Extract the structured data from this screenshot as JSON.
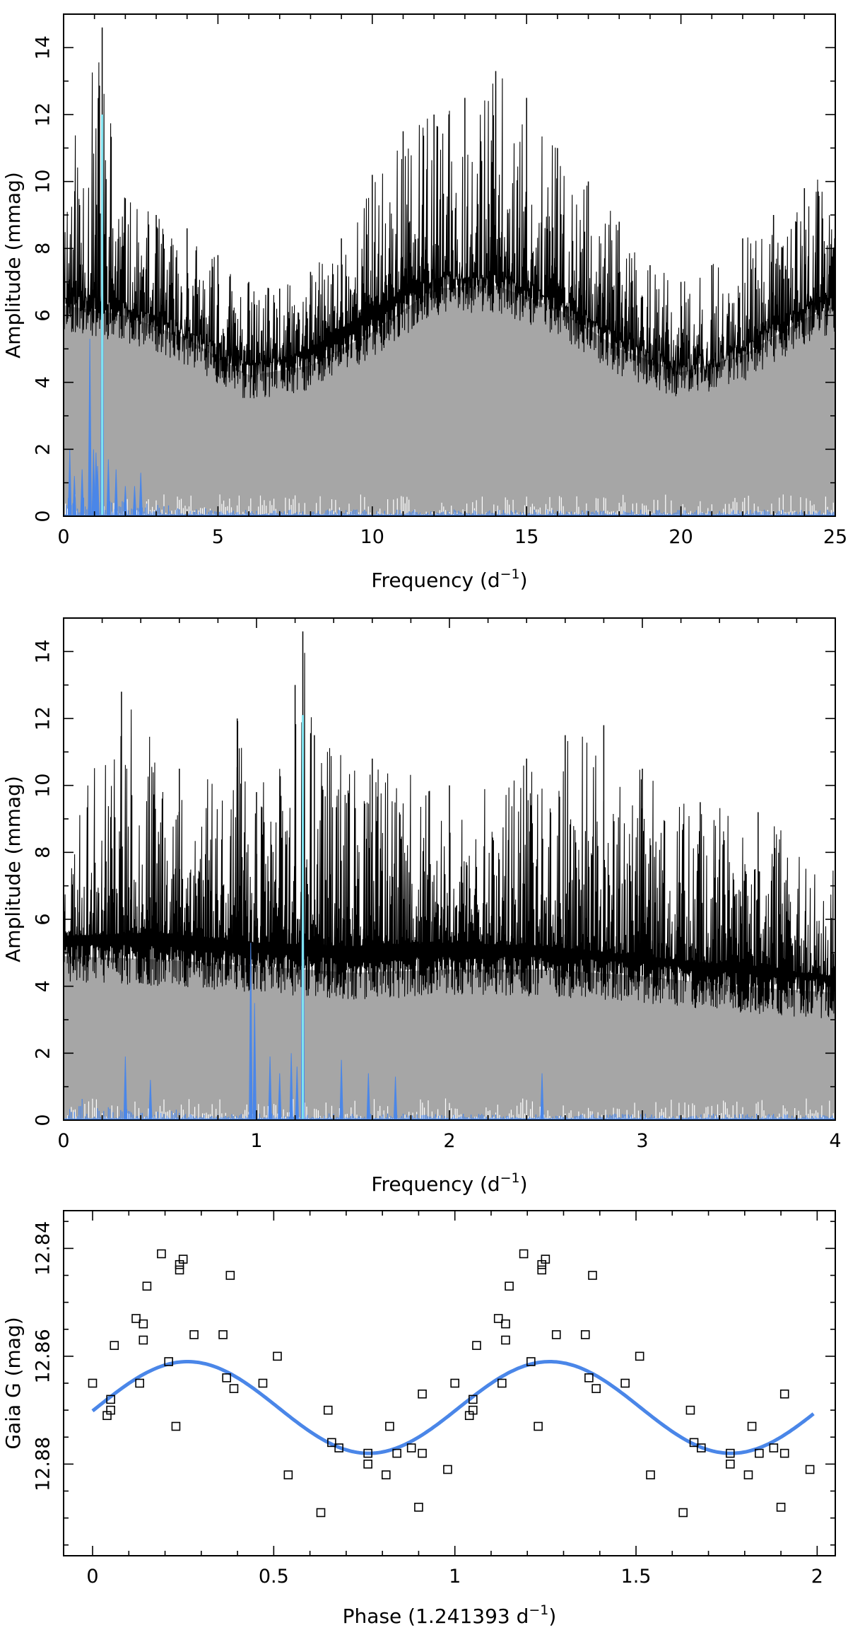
{
  "chart_data": [
    {
      "type": "line",
      "xlabel": "Frequency (d",
      "xlabel_sup": "−1",
      "xlabel_close": ")",
      "ylabel": "Amplitude (mmag)",
      "xlim": [
        0,
        25
      ],
      "ylim": [
        0,
        15
      ],
      "xticks": [
        0,
        5,
        10,
        15,
        20,
        25
      ],
      "yticks": [
        0,
        2,
        4,
        6,
        8,
        10,
        12,
        14
      ],
      "xtick_labels": [
        "0",
        "5",
        "10",
        "15",
        "20",
        "25"
      ],
      "ytick_labels": [
        "0",
        "2",
        "4",
        "6",
        "8",
        "10",
        "12",
        "14"
      ],
      "colors": {
        "upper": "#000000",
        "window": "#a6a6a6",
        "residual": "#ffffff",
        "blue": "#4a86e8",
        "cyan": "#7fe3f0"
      },
      "series": [
        {
          "role": "upper-envelope",
          "x": [
            0,
            1.25,
            2,
            3,
            4,
            5,
            6,
            7,
            8,
            9,
            10,
            11,
            12,
            13,
            14,
            15,
            16,
            17,
            18,
            19,
            20,
            21,
            22,
            23,
            24,
            25
          ],
          "y": [
            10.5,
            14.6,
            9.5,
            9.0,
            8.6,
            7.8,
            7.0,
            6.8,
            7.3,
            8.3,
            10.2,
            11.5,
            12.0,
            12.5,
            13.3,
            12.5,
            11.0,
            10.0,
            8.8,
            7.5,
            7.0,
            7.5,
            8.3,
            9.0,
            9.8,
            10.4
          ]
        },
        {
          "role": "lower-envelope",
          "x": [
            0,
            1,
            2,
            3,
            4,
            5,
            6,
            7,
            8,
            9,
            10,
            11,
            12,
            13,
            14,
            15,
            16,
            17,
            18,
            19,
            20,
            21,
            22,
            23,
            24,
            25
          ],
          "y": [
            6.5,
            6.4,
            6.2,
            5.8,
            5.3,
            4.8,
            4.5,
            4.6,
            5.0,
            5.6,
            6.2,
            6.7,
            7.0,
            7.1,
            7.0,
            6.8,
            6.4,
            5.9,
            5.3,
            4.7,
            4.2,
            4.4,
            5.0,
            5.6,
            6.2,
            6.6
          ]
        },
        {
          "role": "window-top",
          "x": [
            0,
            2,
            4,
            6,
            8,
            10,
            12,
            14,
            16,
            18,
            20,
            22,
            24,
            25
          ],
          "y": [
            6.3,
            6.0,
            5.3,
            4.2,
            4.5,
            5.5,
            6.8,
            6.9,
            6.2,
            5.0,
            4.3,
            4.8,
            5.9,
            6.3
          ]
        },
        {
          "role": "blue-peaks",
          "x": [
            0.2,
            0.35,
            0.6,
            0.85,
            0.97,
            1.05,
            1.1,
            1.25,
            1.45,
            1.7,
            2.0,
            2.3,
            2.5
          ],
          "y": [
            2.0,
            1.2,
            1.4,
            5.3,
            2.0,
            1.9,
            1.5,
            12.0,
            1.7,
            1.4,
            0.9,
            0.9,
            1.3
          ]
        }
      ]
    },
    {
      "type": "line",
      "xlabel": "Frequency (d",
      "xlabel_sup": "−1",
      "xlabel_close": ")",
      "ylabel": "Amplitude (mmag)",
      "xlim": [
        0,
        4
      ],
      "ylim": [
        0,
        15
      ],
      "xticks": [
        0,
        1,
        2,
        3,
        4
      ],
      "yticks": [
        0,
        2,
        4,
        6,
        8,
        10,
        12,
        14
      ],
      "xtick_labels": [
        "0",
        "1",
        "2",
        "3",
        "4"
      ],
      "ytick_labels": [
        "0",
        "2",
        "4",
        "6",
        "8",
        "10",
        "12",
        "14"
      ],
      "series": [
        {
          "role": "upper-envelope",
          "x": [
            0,
            0.3,
            0.6,
            0.9,
            1.0,
            1.2,
            1.24,
            1.3,
            1.6,
            2.0,
            2.4,
            2.6,
            2.8,
            3.0,
            3.3,
            3.6,
            4.0
          ],
          "y": [
            8.0,
            12.8,
            10.5,
            12.0,
            9.8,
            13.0,
            14.6,
            11.5,
            10.8,
            10.0,
            10.8,
            11.5,
            11.8,
            10.5,
            9.5,
            9.2,
            8.0
          ]
        },
        {
          "role": "lower-envelope",
          "x": [
            0,
            0.5,
            1.0,
            1.5,
            2.0,
            2.5,
            3.0,
            3.5,
            4.0
          ],
          "y": [
            5.5,
            5.6,
            5.3,
            5.2,
            5.3,
            5.2,
            4.9,
            4.6,
            4.3
          ]
        },
        {
          "role": "window-top",
          "x": [
            0,
            0.5,
            1.0,
            1.5,
            2.0,
            2.5,
            3.0,
            3.5,
            4.0
          ],
          "y": [
            4.9,
            4.8,
            4.6,
            4.4,
            4.5,
            4.5,
            4.3,
            4.0,
            3.8
          ]
        },
        {
          "role": "blue-peaks",
          "x": [
            0.32,
            0.45,
            0.97,
            0.99,
            1.07,
            1.12,
            1.18,
            1.21,
            1.24,
            1.44,
            1.58,
            1.72,
            2.48
          ],
          "y": [
            1.9,
            1.2,
            5.3,
            3.5,
            1.9,
            1.4,
            2.0,
            1.6,
            12.1,
            1.8,
            1.4,
            1.3,
            1.4
          ]
        }
      ]
    },
    {
      "type": "scatter",
      "xlabel": "Phase (1.241393 d",
      "xlabel_sup": "−1",
      "xlabel_close": ")",
      "ylabel": "Gaia G (mag)",
      "xlim": [
        -0.08,
        2.05
      ],
      "ylim": [
        12.897,
        12.833
      ],
      "xticks": [
        0,
        0.5,
        1,
        1.5,
        2
      ],
      "yticks": [
        12.84,
        12.86,
        12.88
      ],
      "xtick_labels": [
        "0",
        "0.5",
        "1",
        "1.5",
        "2"
      ],
      "ytick_labels": [
        "12.84",
        "12.86",
        "12.88"
      ],
      "points": [
        {
          "x": 0.0,
          "y": 12.865
        },
        {
          "x": 0.04,
          "y": 12.871
        },
        {
          "x": 0.05,
          "y": 12.868
        },
        {
          "x": 0.05,
          "y": 12.87
        },
        {
          "x": 0.06,
          "y": 12.858
        },
        {
          "x": 0.12,
          "y": 12.853
        },
        {
          "x": 0.13,
          "y": 12.865
        },
        {
          "x": 0.14,
          "y": 12.854
        },
        {
          "x": 0.14,
          "y": 12.857
        },
        {
          "x": 0.15,
          "y": 12.847
        },
        {
          "x": 0.19,
          "y": 12.841
        },
        {
          "x": 0.21,
          "y": 12.861
        },
        {
          "x": 0.23,
          "y": 12.873
        },
        {
          "x": 0.24,
          "y": 12.843
        },
        {
          "x": 0.24,
          "y": 12.844
        },
        {
          "x": 0.25,
          "y": 12.842
        },
        {
          "x": 0.28,
          "y": 12.856
        },
        {
          "x": 0.36,
          "y": 12.856
        },
        {
          "x": 0.37,
          "y": 12.864
        },
        {
          "x": 0.38,
          "y": 12.845
        },
        {
          "x": 0.39,
          "y": 12.866
        },
        {
          "x": 0.47,
          "y": 12.865
        },
        {
          "x": 0.51,
          "y": 12.86
        },
        {
          "x": 0.54,
          "y": 12.882
        },
        {
          "x": 0.63,
          "y": 12.889
        },
        {
          "x": 0.65,
          "y": 12.87
        },
        {
          "x": 0.66,
          "y": 12.876
        },
        {
          "x": 0.68,
          "y": 12.877
        },
        {
          "x": 0.76,
          "y": 12.878
        },
        {
          "x": 0.76,
          "y": 12.88
        },
        {
          "x": 0.81,
          "y": 12.882
        },
        {
          "x": 0.82,
          "y": 12.873
        },
        {
          "x": 0.84,
          "y": 12.878
        },
        {
          "x": 0.88,
          "y": 12.877
        },
        {
          "x": 0.9,
          "y": 12.888
        },
        {
          "x": 0.91,
          "y": 12.878
        },
        {
          "x": 0.91,
          "y": 12.867
        },
        {
          "x": 0.98,
          "y": 12.881
        }
      ],
      "fit": {
        "mean": 12.8695,
        "amplitude": 0.0085,
        "phase_of_max": 0.262
      }
    }
  ]
}
